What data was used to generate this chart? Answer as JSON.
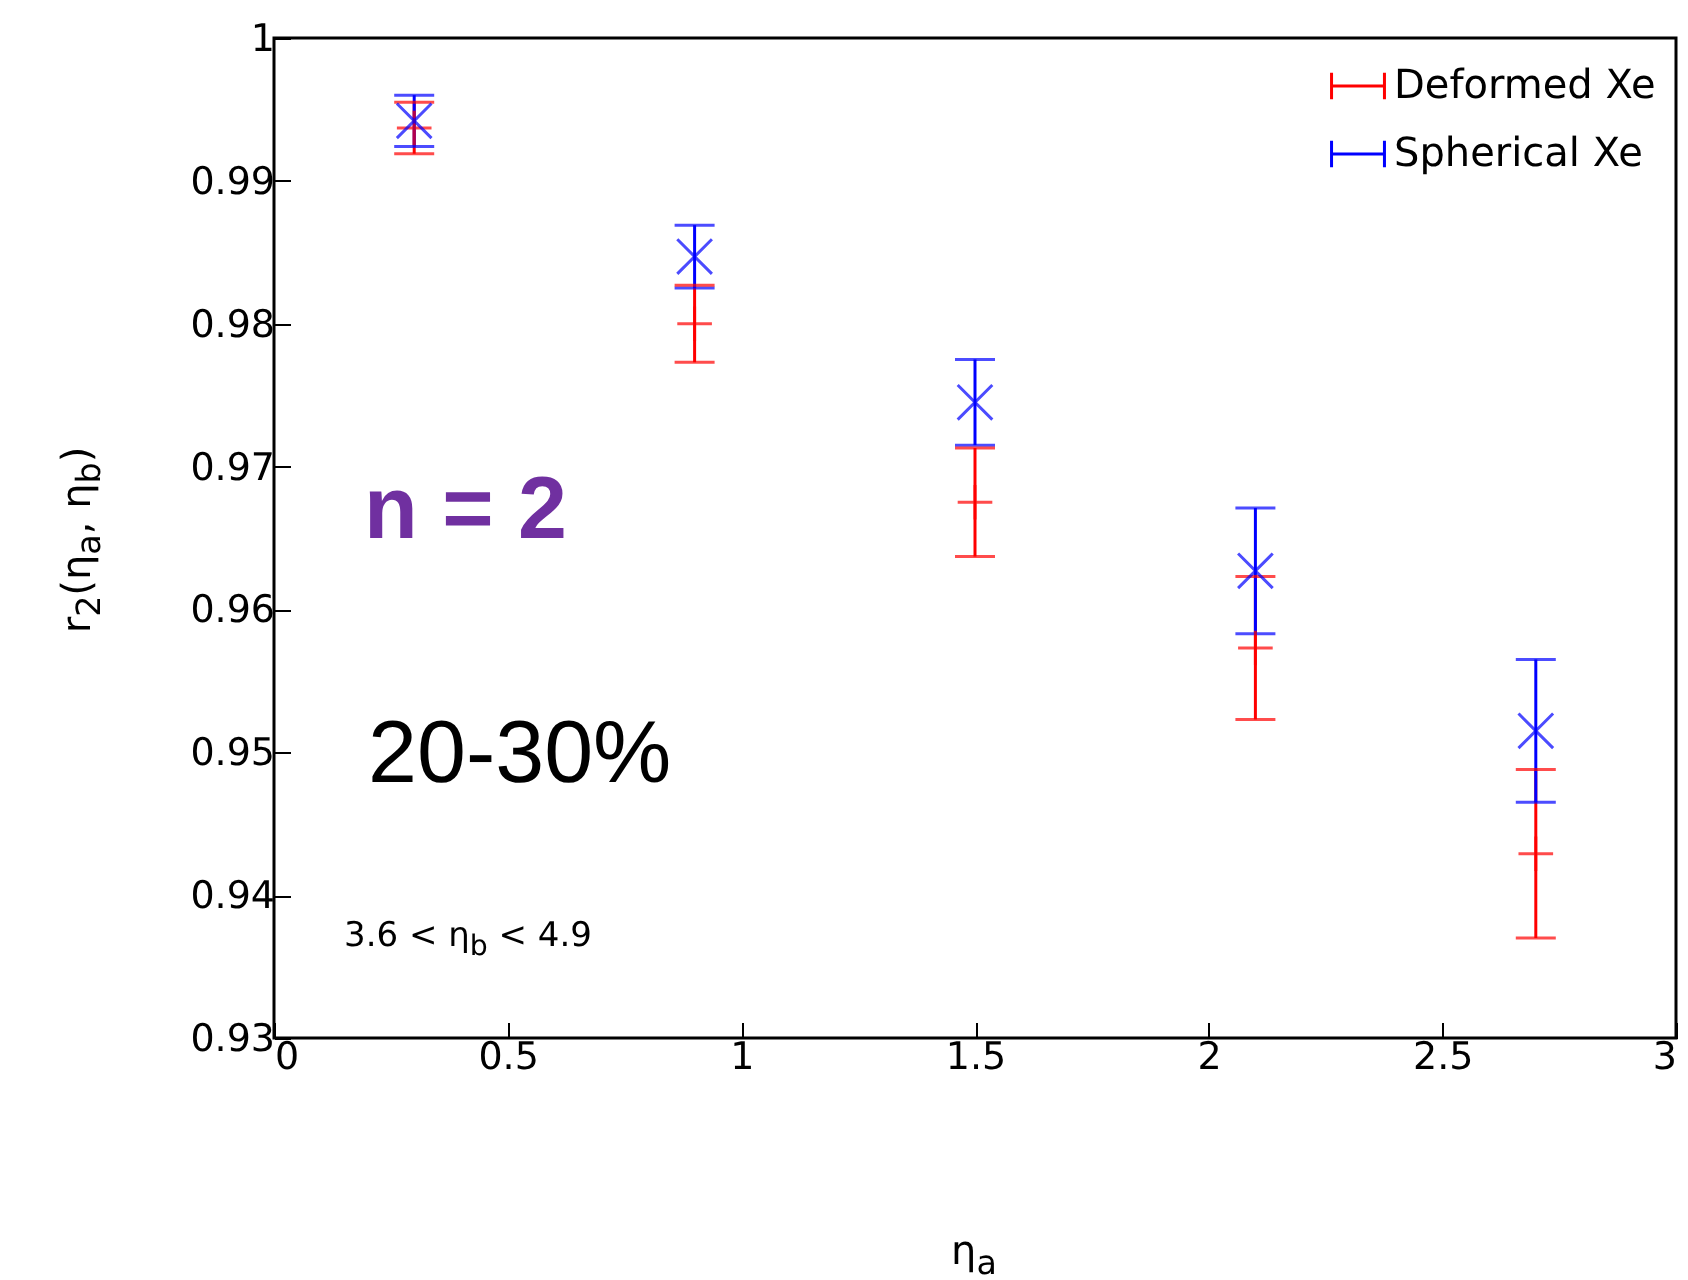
{
  "chart_data": {
    "type": "scatter",
    "xlabel": "η$_{a}$",
    "ylabel": "r$_{2}$(η$_{a}$, η$_{b}$)",
    "x": [
      0.3,
      0.9,
      1.5,
      2.1,
      2.7
    ],
    "series": [
      {
        "name": "Deformed Xe",
        "color": "#ff0000",
        "values": [
          0.9937,
          0.98,
          0.9675,
          0.9573,
          0.9429
        ],
        "errors": [
          0.0018,
          0.0027,
          0.0038,
          0.005,
          0.0059
        ]
      },
      {
        "name": "Spherical Xe",
        "color": "#0000ff",
        "marker": "cross",
        "values": [
          0.9942,
          0.9847,
          0.9745,
          0.9627,
          0.9515
        ],
        "errors": [
          0.0018,
          0.0022,
          0.003,
          0.0044,
          0.005
        ]
      }
    ],
    "xlim": [
      0,
      3
    ],
    "xticks": [
      0,
      0.5,
      1,
      1.5,
      2,
      2.5,
      3
    ],
    "ylim": [
      0.93,
      1
    ],
    "yticks": [
      0.93,
      0.94,
      0.95,
      0.96,
      0.97,
      0.98,
      0.99,
      1
    ],
    "legend": "top right",
    "annotations": [
      "n = 2",
      "20-30%",
      "3.6 < η$_{b}$ < 4.9"
    ]
  }
}
